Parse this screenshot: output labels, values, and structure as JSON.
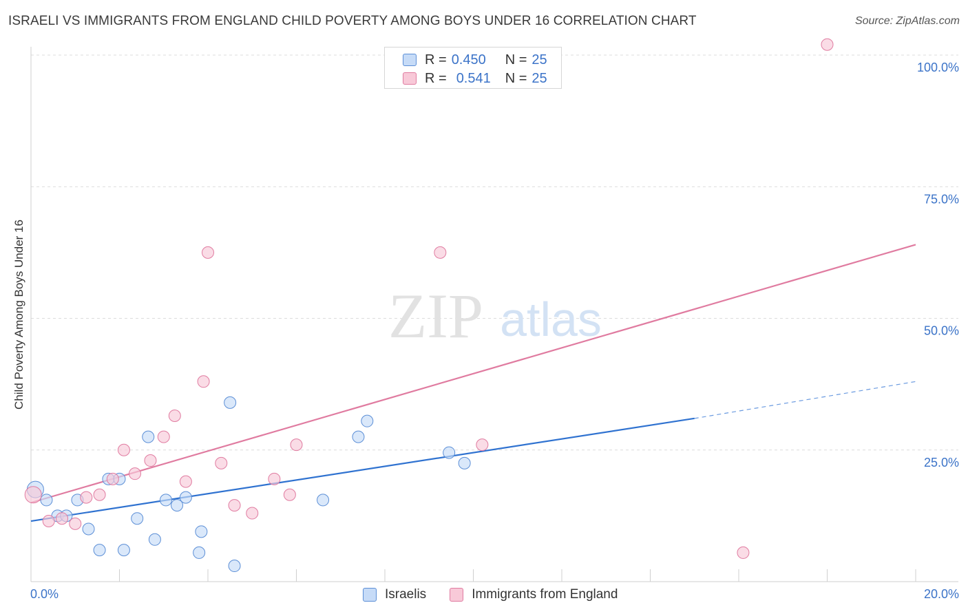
{
  "chart_data": {
    "type": "scatter",
    "title": "ISRAELI VS IMMIGRANTS FROM ENGLAND CHILD POVERTY AMONG BOYS UNDER 16 CORRELATION CHART",
    "source": "Source: ZipAtlas.com",
    "xlabel": "",
    "ylabel": "Child Poverty Among Boys Under 16",
    "xlim": [
      0,
      20
    ],
    "ylim": [
      0,
      100
    ],
    "x_tick_labels": [
      "0.0%",
      "20.0%"
    ],
    "y_tick_labels": [
      "25.0%",
      "50.0%",
      "75.0%",
      "100.0%"
    ],
    "y_tick_values": [
      25,
      50,
      75,
      100
    ],
    "watermark": {
      "part1": "ZIP",
      "part2": "atlas"
    },
    "legend_stats": [
      {
        "r_label": "R =",
        "r_value": "0.450",
        "n_label": "N =",
        "n_value": "25"
      },
      {
        "r_label": "R =",
        "r_value": "0.541",
        "n_label": "N =",
        "n_value": "25"
      }
    ],
    "series": [
      {
        "name": "Israelis",
        "color": "#5b8ed6",
        "fill": "#c6dbf7",
        "points": [
          {
            "x": 0.1,
            "y": 17.5
          },
          {
            "x": 0.35,
            "y": 15.5
          },
          {
            "x": 0.6,
            "y": 12.5
          },
          {
            "x": 0.8,
            "y": 12.5
          },
          {
            "x": 1.05,
            "y": 15.5
          },
          {
            "x": 1.3,
            "y": 10.0
          },
          {
            "x": 1.55,
            "y": 6.0
          },
          {
            "x": 1.75,
            "y": 19.5
          },
          {
            "x": 2.0,
            "y": 19.5
          },
          {
            "x": 2.1,
            "y": 6.0
          },
          {
            "x": 2.4,
            "y": 12.0
          },
          {
            "x": 2.65,
            "y": 27.5
          },
          {
            "x": 2.8,
            "y": 8.0
          },
          {
            "x": 3.05,
            "y": 15.5
          },
          {
            "x": 3.3,
            "y": 14.5
          },
          {
            "x": 3.5,
            "y": 16.0
          },
          {
            "x": 3.8,
            "y": 5.5
          },
          {
            "x": 3.85,
            "y": 9.5
          },
          {
            "x": 4.5,
            "y": 34.0
          },
          {
            "x": 4.6,
            "y": 3.0
          },
          {
            "x": 6.6,
            "y": 15.5
          },
          {
            "x": 7.4,
            "y": 27.5
          },
          {
            "x": 7.6,
            "y": 30.5
          },
          {
            "x": 9.45,
            "y": 24.5
          },
          {
            "x": 9.8,
            "y": 22.5
          }
        ],
        "trend": {
          "x0": 0,
          "y0": 11.5,
          "x1": 15.0,
          "y1": 31.0,
          "dash_x1": 20.0,
          "dash_y1": 38.0
        }
      },
      {
        "name": "Immigrants from England",
        "color": "#e07ba0",
        "fill": "#f8c9d8",
        "points": [
          {
            "x": 0.05,
            "y": 16.5
          },
          {
            "x": 0.4,
            "y": 11.5
          },
          {
            "x": 0.7,
            "y": 12.0
          },
          {
            "x": 1.0,
            "y": 11.0
          },
          {
            "x": 1.25,
            "y": 16.0
          },
          {
            "x": 1.55,
            "y": 16.5
          },
          {
            "x": 1.85,
            "y": 19.5
          },
          {
            "x": 2.1,
            "y": 25.0
          },
          {
            "x": 2.35,
            "y": 20.5
          },
          {
            "x": 2.7,
            "y": 23.0
          },
          {
            "x": 3.0,
            "y": 27.5
          },
          {
            "x": 3.25,
            "y": 31.5
          },
          {
            "x": 3.5,
            "y": 19.0
          },
          {
            "x": 3.9,
            "y": 38.0
          },
          {
            "x": 4.0,
            "y": 62.5
          },
          {
            "x": 4.3,
            "y": 22.5
          },
          {
            "x": 4.6,
            "y": 14.5
          },
          {
            "x": 5.0,
            "y": 13.0
          },
          {
            "x": 5.5,
            "y": 19.5
          },
          {
            "x": 5.85,
            "y": 16.5
          },
          {
            "x": 6.0,
            "y": 26.0
          },
          {
            "x": 9.25,
            "y": 62.5
          },
          {
            "x": 10.2,
            "y": 26.0
          },
          {
            "x": 16.1,
            "y": 5.5
          },
          {
            "x": 18.0,
            "y": 102.0
          }
        ],
        "trend": {
          "x0": 0,
          "y0": 15.0,
          "x1": 20.0,
          "y1": 64.0
        }
      }
    ]
  }
}
